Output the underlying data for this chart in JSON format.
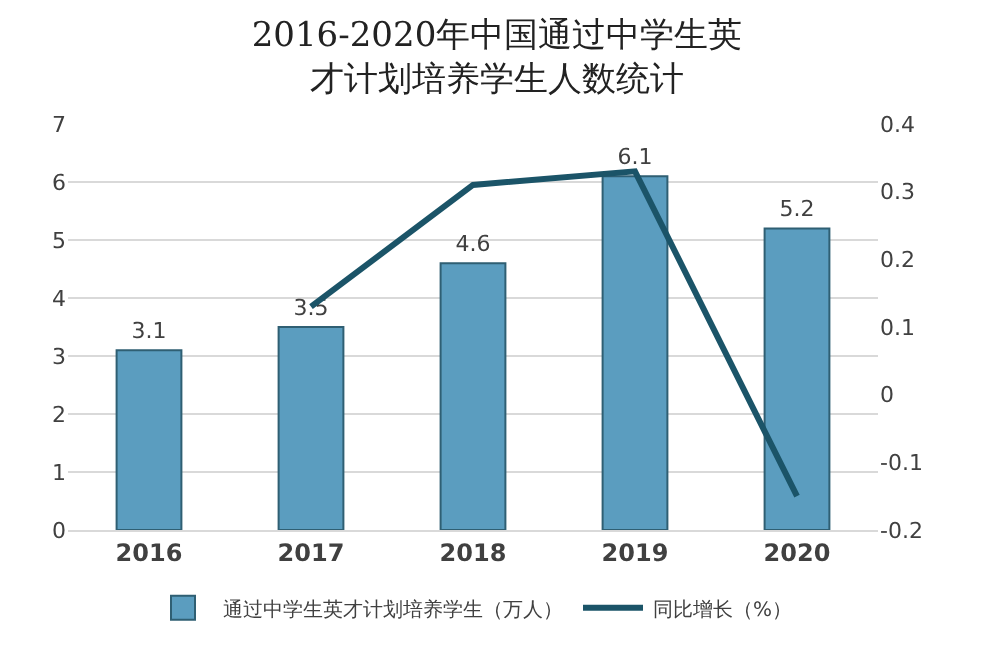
{
  "chart_data": {
    "type": "bar",
    "title": "2016-2020年中国通过中学生英才计划培养学生人数统计",
    "categories": [
      "2016",
      "2017",
      "2018",
      "2019",
      "2020"
    ],
    "series": [
      {
        "name": "通过中学生英才计划培养学生（万人）",
        "color": "#5b9dbf",
        "values": [
          3.1,
          3.5,
          4.6,
          6.1,
          5.2
        ],
        "value_labels": [
          "3.1",
          "3.5",
          "4.6",
          "6.1",
          "5.2"
        ]
      },
      {
        "name": "同比增长（%）",
        "type": "line",
        "axis": "y2",
        "color": "#1b5468",
        "values": [
          null,
          0.13,
          0.31,
          0.33,
          -0.15
        ]
      }
    ],
    "ylim": [
      0,
      7
    ],
    "yticks": [
      0,
      1,
      2,
      3,
      4,
      5,
      6,
      7
    ],
    "y2lim": [
      -0.2,
      0.4
    ],
    "y2ticks": [
      -0.2,
      -0.1,
      0,
      0.1,
      0.2,
      0.3,
      0.4
    ],
    "grid": "y",
    "legend": "bottom",
    "marker": "none",
    "line_style": "solid"
  }
}
